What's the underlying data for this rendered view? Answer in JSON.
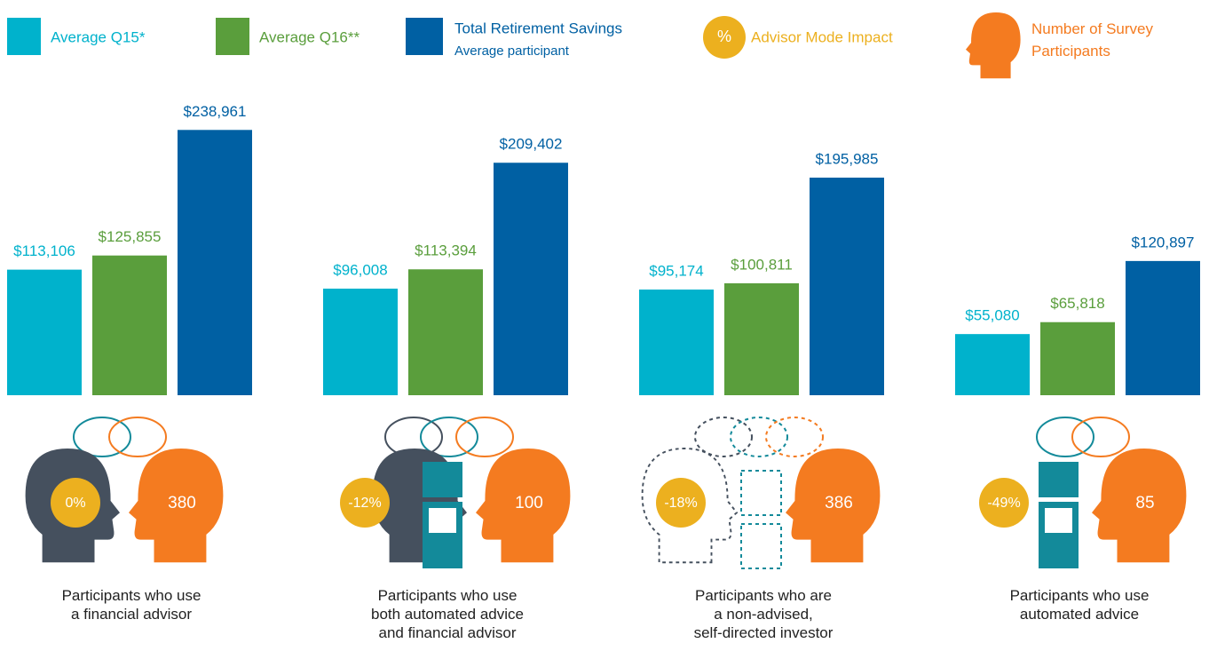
{
  "chart_data": {
    "type": "bar",
    "categories": [
      "Participants who use\na financial advisor",
      "Participants who use\nboth automated advice\nand financial advisor",
      "Participants who are\na non-advised,\nself-directed investor",
      "Participants who use\nautomated advice"
    ],
    "series": [
      {
        "name": "Average Q15*",
        "color": "#00b2cc",
        "values": [
          113106,
          96008,
          95174,
          55080
        ],
        "value_labels": [
          "$113,106",
          "$96,008",
          "$95,174",
          "$55,080"
        ]
      },
      {
        "name": "Average Q16**",
        "color": "#5a9e3c",
        "values": [
          125855,
          113394,
          100811,
          65818
        ],
        "value_labels": [
          "$125,855",
          "$113,394",
          "$100,811",
          "$65,818"
        ]
      },
      {
        "name": "Total Retirement Savings",
        "subtitle": "Average participant",
        "color": "#0060a3",
        "values": [
          238961,
          209402,
          195985,
          120897
        ],
        "value_labels": [
          "$238,961",
          "$209,402",
          "$195,985",
          "$120,897"
        ]
      }
    ],
    "advisor_mode_impact": {
      "name": "Advisor Mode Impact",
      "symbol": "%",
      "color": "#ecb01f",
      "values": [
        0,
        -12,
        -18,
        -49
      ],
      "value_labels": [
        "0%",
        "-12%",
        "-18%",
        "-49%"
      ]
    },
    "participants": {
      "name": "Number of Survey\nParticipants",
      "color": "#f47b20",
      "values": [
        380,
        100,
        386,
        85
      ]
    },
    "ylim": [
      0,
      240000
    ]
  }
}
